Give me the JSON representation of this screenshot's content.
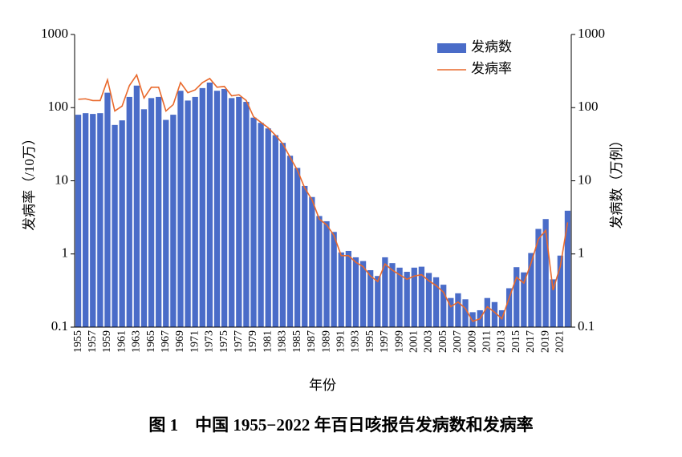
{
  "chart_data": {
    "type": "combo",
    "caption": "图 1　中国 1955−2022 年百日咳报告发病数和发病率",
    "x_label": "年份",
    "y_label": "发病率（/10万）",
    "y2_label": "发病数（万例）",
    "categories": [
      "1955",
      null,
      "1957",
      null,
      "1959",
      null,
      "1961",
      null,
      "1963",
      null,
      "1965",
      null,
      "1967",
      null,
      "1969",
      null,
      "1971",
      null,
      "1973",
      null,
      "1975",
      null,
      "1977",
      null,
      "1979",
      null,
      "1981",
      null,
      "1983",
      null,
      "1985",
      null,
      "1987",
      null,
      "1989",
      null,
      "1991",
      null,
      "1993",
      null,
      "1995",
      null,
      "1997",
      null,
      "1999",
      null,
      "2001",
      null,
      "2003",
      null,
      "2005",
      null,
      "2007",
      null,
      "2009",
      null,
      "2011",
      null,
      "2013",
      null,
      "2015",
      null,
      "2017",
      null,
      "2019",
      null,
      "2021",
      null
    ],
    "series": [
      {
        "name": "发病数",
        "type": "bar",
        "axis": "y2",
        "color": "#4a6cc8",
        "values": [
          80,
          84,
          82,
          84,
          160,
          58,
          67,
          140,
          200,
          95,
          135,
          140,
          68,
          80,
          170,
          125,
          140,
          185,
          220,
          170,
          180,
          135,
          140,
          120,
          73,
          62,
          52,
          42,
          33,
          22,
          15,
          8.5,
          6,
          3.3,
          2.8,
          2,
          1.05,
          1.1,
          0.9,
          0.8,
          0.6,
          0.5,
          0.9,
          0.75,
          0.65,
          0.57,
          0.65,
          0.67,
          0.55,
          0.48,
          0.38,
          0.25,
          0.29,
          0.24,
          0.16,
          0.17,
          0.25,
          0.22,
          0.17,
          0.34,
          0.66,
          0.56,
          1.03,
          2.2,
          3.0,
          0.45,
          0.95,
          3.9
        ]
      },
      {
        "name": "发病率",
        "type": "line",
        "axis": "y",
        "color": "#e9692c",
        "values": [
          130,
          132,
          125,
          125,
          240,
          90,
          105,
          200,
          280,
          135,
          190,
          190,
          90,
          110,
          220,
          160,
          175,
          220,
          250,
          190,
          195,
          145,
          150,
          125,
          75,
          63,
          53,
          42,
          32,
          21,
          14,
          8,
          5.5,
          3,
          2.5,
          1.8,
          0.95,
          0.95,
          0.77,
          0.67,
          0.5,
          0.42,
          0.73,
          0.6,
          0.52,
          0.45,
          0.5,
          0.52,
          0.43,
          0.37,
          0.3,
          0.19,
          0.22,
          0.18,
          0.12,
          0.13,
          0.19,
          0.16,
          0.13,
          0.25,
          0.48,
          0.4,
          0.75,
          1.6,
          2.1,
          0.32,
          0.68,
          2.7
        ]
      }
    ],
    "log_scale": true,
    "ylim": [
      0.1,
      1000
    ],
    "yticks": [
      1000,
      100,
      10,
      1,
      0.1
    ],
    "y2lim": [
      0.1,
      1000
    ],
    "y2ticks": [
      1000,
      100,
      10,
      1,
      0.1
    ],
    "legend": "upper right"
  }
}
